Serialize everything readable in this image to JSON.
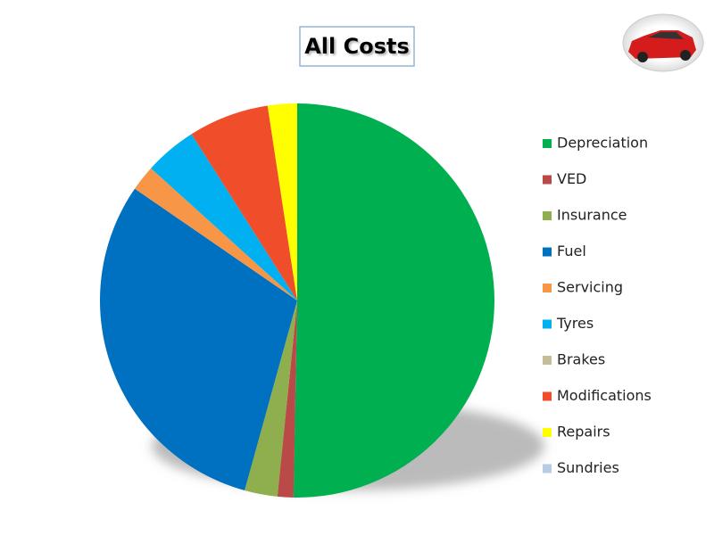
{
  "chart_data": {
    "type": "pie",
    "title": "All Costs",
    "categories": [
      "Depreciation",
      "VED",
      "Insurance",
      "Fuel",
      "Servicing",
      "Tyres",
      "Brakes",
      "Modifications",
      "Repairs",
      "Sundries"
    ],
    "values": [
      50.3,
      1.3,
      2.7,
      30.3,
      2.1,
      4.3,
      0,
      6.6,
      2.4,
      0
    ],
    "colors": [
      "#00b050",
      "#b94a48",
      "#8faf4f",
      "#0070c0",
      "#f79646",
      "#00b0f0",
      "#c4bd97",
      "#f04e2a",
      "#ffff00",
      "#b8cce4"
    ],
    "legend": "right"
  }
}
